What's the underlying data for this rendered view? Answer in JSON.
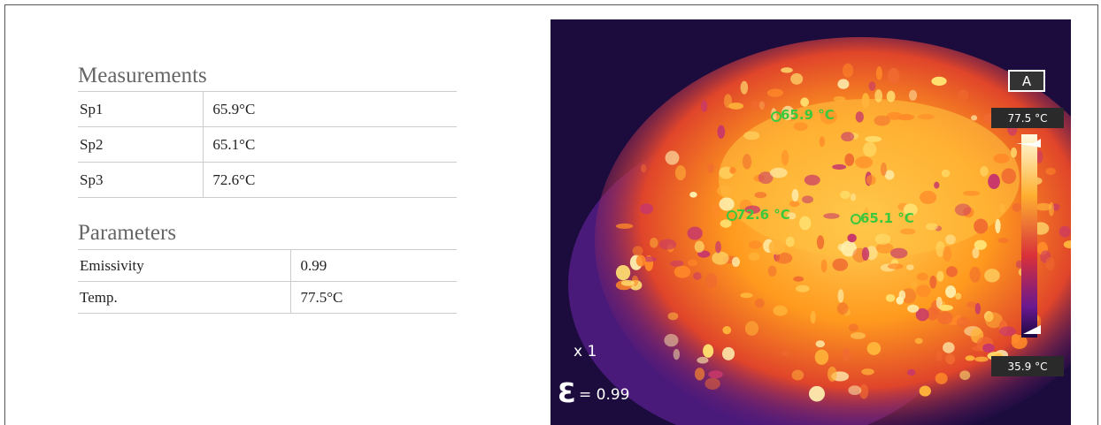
{
  "measurements": {
    "title": "Measurements",
    "rows": [
      [
        "Sp1",
        "65.9°C"
      ],
      [
        "Sp2",
        "65.1°C"
      ],
      [
        "Sp3",
        "72.6°C"
      ]
    ]
  },
  "parameters": {
    "title": "Parameters",
    "rows": [
      [
        "Emissivity",
        "0.99"
      ],
      [
        "Temp.",
        "77.5°C"
      ]
    ]
  },
  "thermal_image": {
    "mode": "A",
    "max_label": "77.5 °C",
    "min_label": "35.9 °C",
    "zoom": "x 1",
    "emissivity_symbol": "Ɛ",
    "emissivity_text": "= 0.99",
    "spots": [
      "65.9 °C",
      "72.6 °C",
      "65.1 °C"
    ]
  }
}
